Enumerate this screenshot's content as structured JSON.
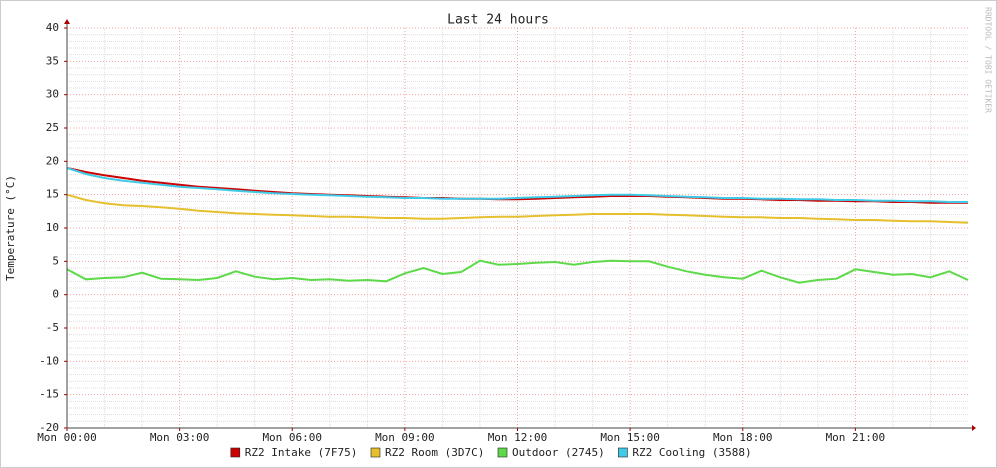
{
  "chart_data": {
    "type": "line",
    "title": "Last 24 hours",
    "y_label": "Temperature (°C)",
    "watermark": "RRDTOOL / TOBI OETIKER",
    "x": [
      0,
      0.5,
      1,
      1.5,
      2,
      2.5,
      3,
      3.5,
      4,
      4.5,
      5,
      5.5,
      6,
      6.5,
      7,
      7.5,
      8,
      8.5,
      9,
      9.5,
      10,
      10.5,
      11,
      11.5,
      12,
      12.5,
      13,
      13.5,
      14,
      14.5,
      15,
      15.5,
      16,
      16.5,
      17,
      17.5,
      18,
      18.5,
      19,
      19.5,
      20,
      20.5,
      21,
      21.5,
      22,
      22.5,
      23,
      23.5,
      24
    ],
    "series": [
      {
        "name": "RZ2 Intake (7F75)",
        "color": "#cc0000",
        "values": [
          19.0,
          18.4,
          17.9,
          17.5,
          17.1,
          16.8,
          16.5,
          16.2,
          16.0,
          15.8,
          15.6,
          15.4,
          15.2,
          15.1,
          15.0,
          14.9,
          14.8,
          14.7,
          14.6,
          14.5,
          14.5,
          14.4,
          14.4,
          14.3,
          14.3,
          14.4,
          14.5,
          14.6,
          14.7,
          14.8,
          14.8,
          14.8,
          14.7,
          14.6,
          14.5,
          14.4,
          14.4,
          14.3,
          14.2,
          14.2,
          14.1,
          14.1,
          14.0,
          14.0,
          13.9,
          13.9,
          13.8,
          13.8,
          13.8
        ]
      },
      {
        "name": "RZ2 Room (3D7C)",
        "color": "#e6bf2e",
        "values": [
          15.0,
          14.2,
          13.7,
          13.4,
          13.3,
          13.1,
          12.9,
          12.6,
          12.4,
          12.2,
          12.1,
          12.0,
          11.9,
          11.8,
          11.7,
          11.7,
          11.6,
          11.5,
          11.5,
          11.4,
          11.4,
          11.5,
          11.6,
          11.7,
          11.7,
          11.8,
          11.9,
          12.0,
          12.1,
          12.1,
          12.1,
          12.1,
          12.0,
          11.9,
          11.8,
          11.7,
          11.6,
          11.6,
          11.5,
          11.5,
          11.4,
          11.3,
          11.2,
          11.2,
          11.1,
          11.0,
          11.0,
          10.9,
          10.8
        ]
      },
      {
        "name": "Outdoor (2745)",
        "color": "#5ed94a",
        "values": [
          3.8,
          2.3,
          2.5,
          2.6,
          3.3,
          2.4,
          2.3,
          2.2,
          2.5,
          3.5,
          2.7,
          2.3,
          2.5,
          2.2,
          2.3,
          2.1,
          2.2,
          2.0,
          3.2,
          4.0,
          3.1,
          3.4,
          5.1,
          4.5,
          4.6,
          4.8,
          4.9,
          4.5,
          4.9,
          5.1,
          5.0,
          5.0,
          4.2,
          3.5,
          3.0,
          2.6,
          2.4,
          3.6,
          2.6,
          1.8,
          2.2,
          2.4,
          3.8,
          3.4,
          3.0,
          3.1,
          2.6,
          3.5,
          2.2
        ]
      },
      {
        "name": "RZ2 Cooling (3588)",
        "color": "#3fcbe8",
        "values": [
          19.0,
          18.1,
          17.5,
          17.1,
          16.8,
          16.5,
          16.2,
          16.0,
          15.8,
          15.6,
          15.4,
          15.2,
          15.1,
          15.0,
          14.9,
          14.8,
          14.7,
          14.6,
          14.5,
          14.5,
          14.4,
          14.4,
          14.4,
          14.4,
          14.5,
          14.6,
          14.7,
          14.8,
          14.9,
          15.0,
          15.0,
          14.9,
          14.8,
          14.7,
          14.6,
          14.5,
          14.5,
          14.4,
          14.4,
          14.3,
          14.3,
          14.2,
          14.2,
          14.1,
          14.1,
          14.0,
          14.0,
          13.9,
          13.9
        ]
      }
    ],
    "xlim": [
      0,
      24
    ],
    "xticks": [
      {
        "value": 0,
        "label": "Mon 00:00"
      },
      {
        "value": 3,
        "label": "Mon 03:00"
      },
      {
        "value": 6,
        "label": "Mon 06:00"
      },
      {
        "value": 9,
        "label": "Mon 09:00"
      },
      {
        "value": 12,
        "label": "Mon 12:00"
      },
      {
        "value": 15,
        "label": "Mon 15:00"
      },
      {
        "value": 18,
        "label": "Mon 18:00"
      },
      {
        "value": 21,
        "label": "Mon 21:00"
      }
    ],
    "ylim": [
      -20,
      40
    ],
    "yticks": [
      -20,
      -15,
      -10,
      -5,
      0,
      5,
      10,
      15,
      20,
      25,
      30,
      35,
      40
    ],
    "grid": true,
    "legend": "bottom"
  }
}
